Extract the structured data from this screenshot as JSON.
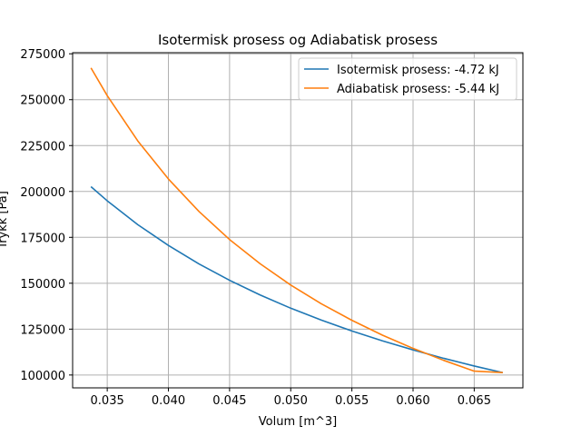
{
  "chart_data": {
    "type": "line",
    "title": "Isotermisk prosess og Adiabatisk prosess",
    "xlabel": "Volum [m^3]",
    "ylabel": "Trykk [Pa]",
    "xlim": [
      0.03217,
      0.06898
    ],
    "ylim": [
      93000,
      275600
    ],
    "xticks": [
      0.035,
      0.04,
      0.045,
      0.05,
      0.055,
      0.06,
      0.065
    ],
    "xtick_labels": [
      "0.035",
      "0.040",
      "0.045",
      "0.050",
      "0.055",
      "0.060",
      "0.065"
    ],
    "yticks": [
      100000,
      125000,
      150000,
      175000,
      200000,
      225000,
      250000,
      275000
    ],
    "ytick_labels": [
      "100000",
      "125000",
      "150000",
      "175000",
      "200000",
      "225000",
      "250000",
      "275000"
    ],
    "grid": true,
    "legend_position": "top-right",
    "series": [
      {
        "name": "Isotermisk prosess: -4.72 kJ",
        "color": "#1f77b4",
        "x": [
          0.03367,
          0.035,
          0.0375,
          0.04,
          0.0425,
          0.045,
          0.0475,
          0.05,
          0.0525,
          0.055,
          0.0575,
          0.06,
          0.0625,
          0.065,
          0.06734
        ],
        "y": [
          202600,
          194900,
          181900,
          170600,
          160500,
          151600,
          143600,
          136400,
          129900,
          124000,
          118600,
          113700,
          109100,
          104900,
          101300
        ]
      },
      {
        "name": "Adiabatisk prosess: -5.44 kJ",
        "color": "#ff7f0e",
        "x": [
          0.03367,
          0.035,
          0.0375,
          0.04,
          0.0425,
          0.045,
          0.0475,
          0.05,
          0.0525,
          0.055,
          0.0575,
          0.06,
          0.0625,
          0.065,
          0.06734
        ],
        "y": [
          267300,
          252200,
          227500,
          206800,
          189100,
          173800,
          160600,
          149000,
          138800,
          129800,
          121700,
          114500,
          108000,
          102100,
          101300
        ]
      }
    ]
  }
}
